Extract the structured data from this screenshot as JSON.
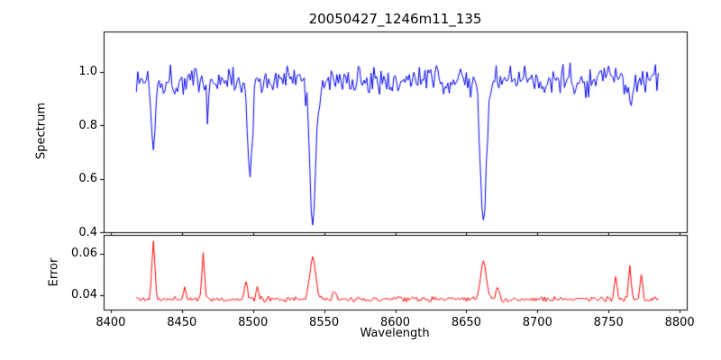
{
  "figure": {
    "title": "20050427_1246m11_135",
    "background": "#ffffff",
    "frame_color": "#000000"
  },
  "x_axis": {
    "label": "Wavelength",
    "ticks": [
      8400,
      8450,
      8500,
      8550,
      8600,
      8650,
      8700,
      8750,
      8800
    ],
    "tick_labels": [
      "8400",
      "8450",
      "8500",
      "8550",
      "8600",
      "8650",
      "8700",
      "8750",
      "8800"
    ]
  },
  "chart_data": [
    {
      "type": "line",
      "name": "spectrum",
      "title": "20050427_1246m11_135",
      "ylabel": "Spectrum",
      "color": "#0000ee",
      "legend": "none",
      "grid": false,
      "xlim": [
        8395,
        8805
      ],
      "ylim": [
        0.4,
        1.15
      ],
      "y_ticks": [
        0.4,
        0.6,
        0.8,
        1.0
      ],
      "y_tick_labels": [
        "0.4",
        "0.6",
        "0.8",
        "1.0"
      ],
      "x_range": [
        8418,
        8785
      ],
      "x_step": 1.0,
      "baseline": 0.968,
      "noise_amplitude": 0.07,
      "absorption_lines": [
        {
          "center": 8430,
          "min_flux": 0.7,
          "sigma": 1.2
        },
        {
          "center": 8468,
          "min_flux": 0.86,
          "sigma": 1.0
        },
        {
          "center": 8498,
          "min_flux": 0.6,
          "sigma": 1.6
        },
        {
          "center": 8542,
          "min_flux": 0.44,
          "sigma": 2.2
        },
        {
          "center": 8662,
          "min_flux": 0.45,
          "sigma": 2.2
        },
        {
          "center": 8765,
          "min_flux": 0.87,
          "sigma": 1.0
        }
      ]
    },
    {
      "type": "line",
      "name": "error",
      "ylabel": "Error",
      "color": "#ff0000",
      "legend": "none",
      "grid": false,
      "xlim": [
        8395,
        8805
      ],
      "ylim": [
        0.033,
        0.069
      ],
      "y_ticks": [
        0.04,
        0.06
      ],
      "y_tick_labels": [
        "0.04",
        "0.06"
      ],
      "x_range": [
        8418,
        8785
      ],
      "x_step": 1.0,
      "baseline": 0.038,
      "noise_amplitude": 0.0015,
      "emission_spikes": [
        {
          "center": 8430,
          "peak": 0.067,
          "sigma": 1.0
        },
        {
          "center": 8452,
          "peak": 0.044,
          "sigma": 0.8
        },
        {
          "center": 8465,
          "peak": 0.061,
          "sigma": 0.9
        },
        {
          "center": 8495,
          "peak": 0.047,
          "sigma": 1.0
        },
        {
          "center": 8503,
          "peak": 0.044,
          "sigma": 0.8
        },
        {
          "center": 8542,
          "peak": 0.058,
          "sigma": 2.0
        },
        {
          "center": 8557,
          "peak": 0.042,
          "sigma": 1.0
        },
        {
          "center": 8662,
          "peak": 0.057,
          "sigma": 2.0
        },
        {
          "center": 8672,
          "peak": 0.044,
          "sigma": 1.0
        },
        {
          "center": 8755,
          "peak": 0.049,
          "sigma": 0.9
        },
        {
          "center": 8765,
          "peak": 0.054,
          "sigma": 0.9
        },
        {
          "center": 8773,
          "peak": 0.05,
          "sigma": 0.9
        }
      ]
    }
  ]
}
